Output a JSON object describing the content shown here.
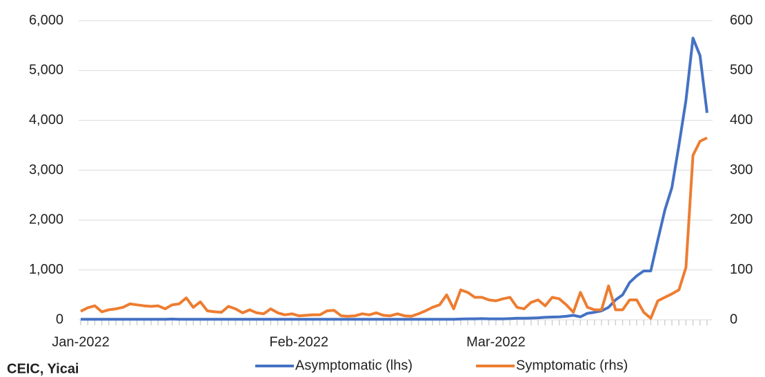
{
  "chart_data": {
    "type": "line",
    "source": "CEIC, Yicai",
    "categories": [
      "Jan-2022",
      null,
      null,
      null,
      null,
      null,
      null,
      null,
      null,
      null,
      null,
      null,
      null,
      null,
      null,
      null,
      null,
      null,
      null,
      null,
      null,
      null,
      null,
      null,
      null,
      null,
      null,
      null,
      null,
      null,
      null,
      "Feb-2022",
      null,
      null,
      null,
      null,
      null,
      null,
      null,
      null,
      null,
      null,
      null,
      null,
      null,
      null,
      null,
      null,
      null,
      null,
      null,
      null,
      null,
      null,
      null,
      null,
      null,
      null,
      null,
      "Mar-2022",
      null,
      null,
      null,
      null,
      null,
      null,
      null,
      null,
      null,
      null,
      null,
      null,
      null,
      null,
      null,
      null,
      null,
      null,
      null,
      null,
      null,
      null,
      null,
      null,
      null,
      null,
      null,
      null,
      null,
      null
    ],
    "series": [
      {
        "name": "Asymptomatic (lhs)",
        "color": "#4472c4",
        "axis": "y",
        "values": [
          10,
          10,
          10,
          10,
          10,
          10,
          10,
          10,
          10,
          10,
          10,
          10,
          10,
          15,
          10,
          10,
          10,
          10,
          10,
          10,
          10,
          10,
          10,
          10,
          10,
          10,
          10,
          10,
          10,
          10,
          10,
          10,
          10,
          10,
          10,
          10,
          10,
          10,
          10,
          10,
          10,
          10,
          10,
          10,
          10,
          10,
          10,
          10,
          10,
          10,
          10,
          10,
          10,
          10,
          15,
          20,
          20,
          25,
          20,
          20,
          20,
          25,
          30,
          30,
          35,
          40,
          50,
          55,
          60,
          70,
          90,
          60,
          130,
          150,
          180,
          250,
          400,
          500,
          750,
          880,
          980,
          980,
          1600,
          2200,
          2650,
          3500,
          4400,
          5650,
          5300,
          4150
        ]
      },
      {
        "name": "Symptomatic (rhs)",
        "color": "#ed7d31",
        "axis": "y2",
        "values": [
          17,
          24,
          28,
          16,
          20,
          22,
          25,
          32,
          30,
          28,
          27,
          28,
          22,
          30,
          32,
          44,
          25,
          36,
          18,
          16,
          15,
          27,
          22,
          14,
          20,
          14,
          12,
          22,
          14,
          10,
          12,
          8,
          9,
          10,
          10,
          18,
          19,
          8,
          7,
          8,
          12,
          10,
          14,
          9,
          8,
          12,
          8,
          7,
          12,
          18,
          25,
          30,
          50,
          22,
          60,
          55,
          45,
          45,
          40,
          38,
          42,
          45,
          25,
          22,
          35,
          40,
          28,
          45,
          42,
          30,
          15,
          55,
          25,
          20,
          20,
          68,
          20,
          20,
          40,
          40,
          15,
          3,
          38,
          45,
          52,
          60,
          105,
          330,
          358,
          365
        ]
      }
    ],
    "ylim": [
      0,
      6000
    ],
    "yticks": [
      0,
      {
        "value": 1000,
        "label": "1,000"
      },
      {
        "value": 2000,
        "label": "2,000"
      },
      {
        "value": 3000,
        "label": "3,000"
      },
      {
        "value": 4000,
        "label": "4,000"
      },
      {
        "value": 5000,
        "label": "5,000"
      },
      {
        "value": 6000,
        "label": "6,000"
      }
    ],
    "y2lim": [
      0,
      600
    ],
    "y2ticks": [
      0,
      100,
      200,
      300,
      400,
      500,
      600
    ],
    "grid": true,
    "legend": "bottom"
  }
}
